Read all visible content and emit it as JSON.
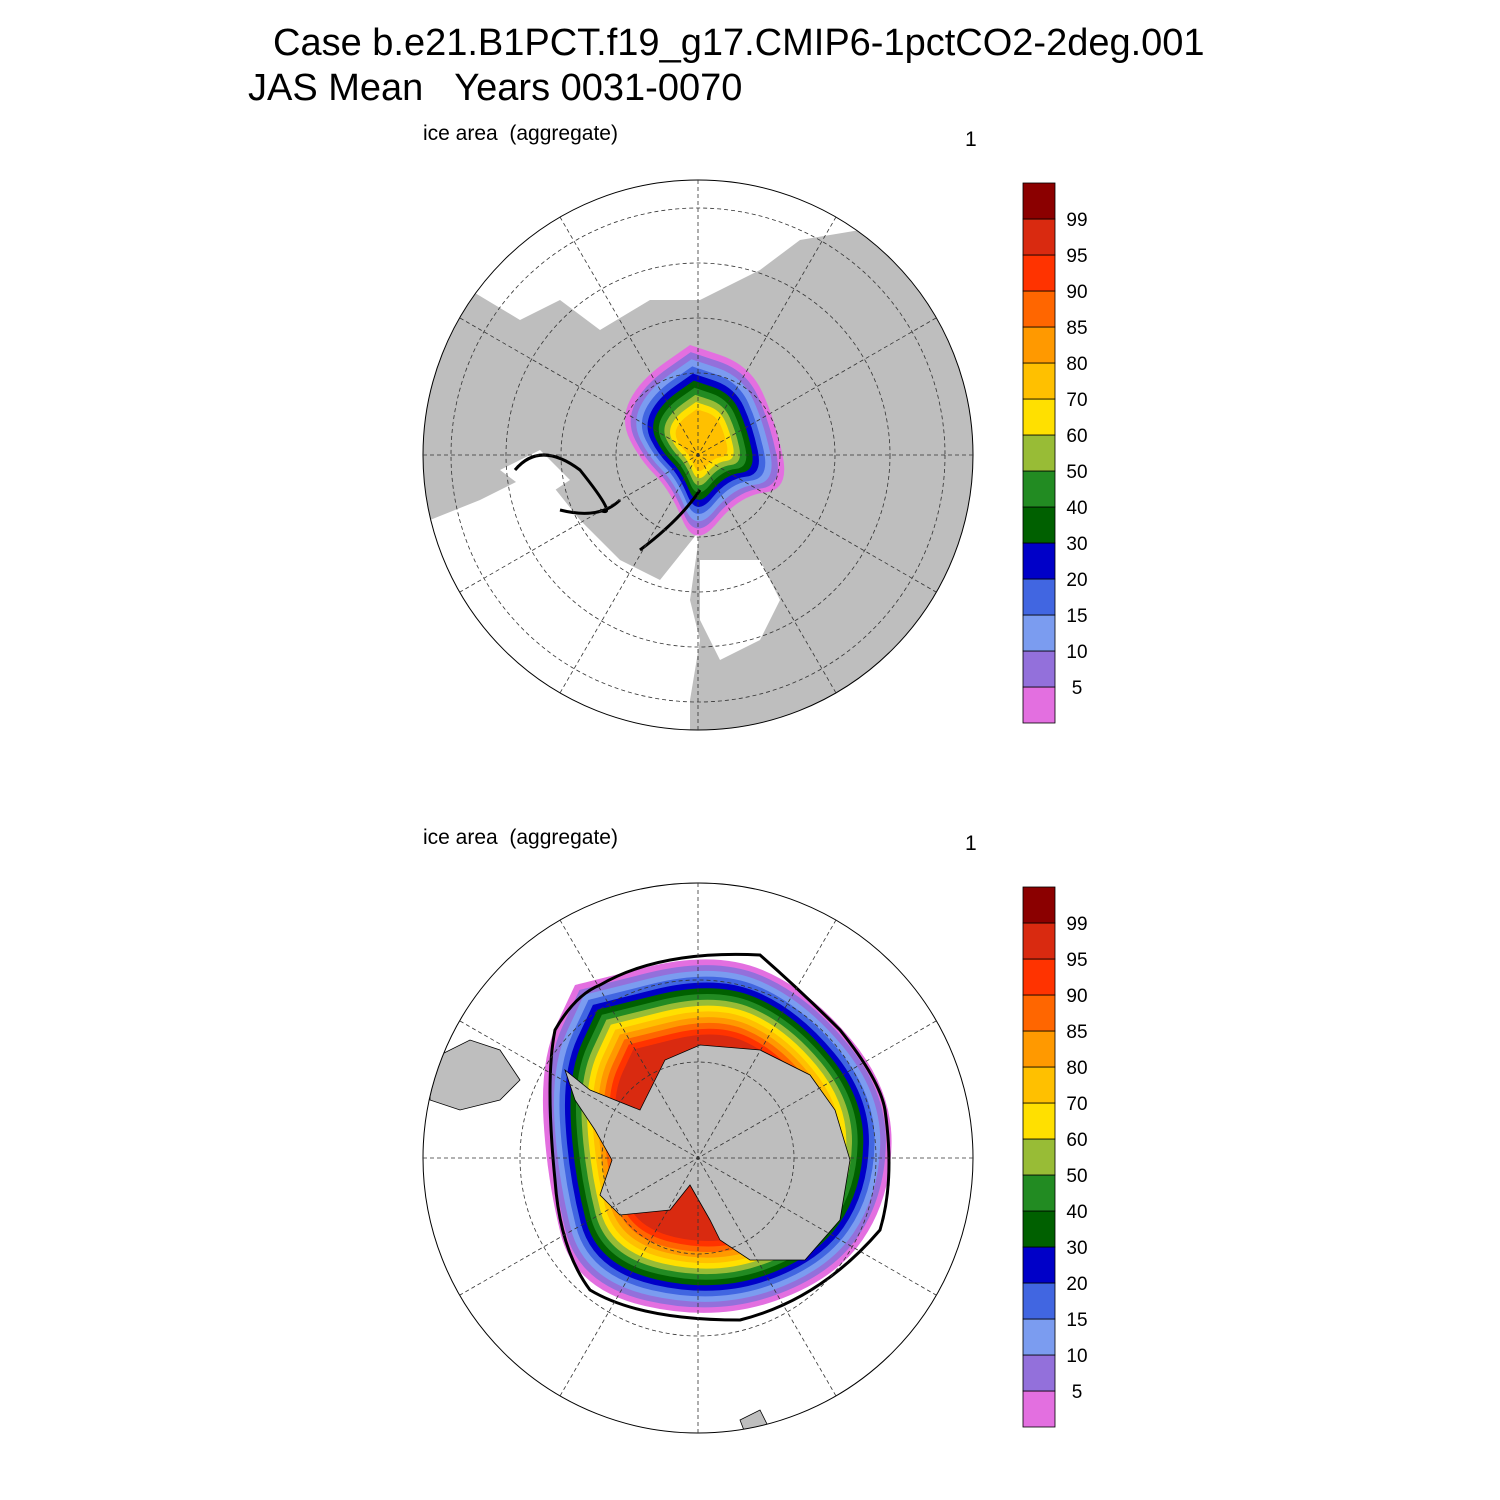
{
  "title": [
    "Case b.e21.B1PCT.f19_g17.CMIP6-1pctCO2-2deg.001",
    "JAS Mean   Years 0031-0070"
  ],
  "panels": [
    {
      "label": "ice area  (aggregate)",
      "units": "1"
    },
    {
      "label": "ice area  (aggregate)",
      "units": "1"
    }
  ],
  "colorbar": {
    "levels": [
      5,
      10,
      15,
      20,
      30,
      40,
      50,
      60,
      70,
      80,
      85,
      90,
      95,
      99
    ],
    "colors": [
      "#e36fe0",
      "#9370db",
      "#7b9cf0",
      "#4166e1",
      "#0000c8",
      "#006000",
      "#228b22",
      "#98bc36",
      "#ffe000",
      "#ffc000",
      "#ff9900",
      "#ff6600",
      "#ff3300",
      "#d92a10",
      "#8b0000"
    ]
  }
}
